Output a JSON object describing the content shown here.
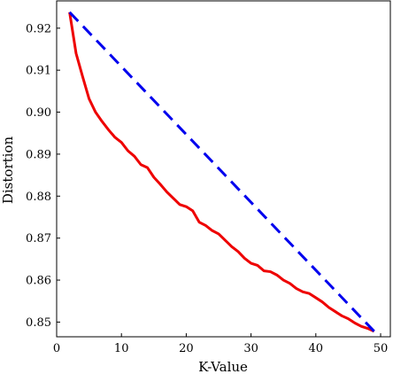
{
  "chart_data": {
    "type": "line",
    "xlabel": "K-Value",
    "ylabel": "Distortion",
    "xlim": [
      0,
      51.5
    ],
    "ylim": [
      0.8465,
      0.9265
    ],
    "xticks": [
      0,
      10,
      20,
      30,
      40,
      50
    ],
    "yticks": [
      0.85,
      0.86,
      0.87,
      0.88,
      0.89,
      0.9,
      0.91,
      0.92
    ],
    "xtick_labels": [
      "0",
      "10",
      "20",
      "30",
      "40",
      "50"
    ],
    "ytick_labels": [
      "0.85",
      "0.86",
      "0.87",
      "0.88",
      "0.89",
      "0.90",
      "0.91",
      "0.92"
    ],
    "grid": false,
    "series": [
      {
        "color": "#ee0000",
        "style": "solid",
        "x": [
          2,
          3,
          4,
          5,
          6,
          7,
          8,
          9,
          10,
          11,
          12,
          13,
          14,
          15,
          16,
          17,
          18,
          19,
          20,
          21,
          22,
          23,
          24,
          25,
          26,
          27,
          28,
          29,
          30,
          31,
          32,
          33,
          34,
          35,
          36,
          37,
          38,
          39,
          40,
          41,
          42,
          43,
          44,
          45,
          46,
          47,
          48,
          49
        ],
        "y": [
          0.9238,
          0.914,
          0.9085,
          0.9032,
          0.9,
          0.8978,
          0.8958,
          0.894,
          0.8928,
          0.8908,
          0.8895,
          0.8875,
          0.8868,
          0.8845,
          0.8828,
          0.881,
          0.8795,
          0.878,
          0.8775,
          0.8765,
          0.8738,
          0.873,
          0.8718,
          0.871,
          0.8695,
          0.868,
          0.8668,
          0.8652,
          0.864,
          0.8635,
          0.8622,
          0.862,
          0.8612,
          0.86,
          0.8592,
          0.858,
          0.8572,
          0.8568,
          0.8558,
          0.8548,
          0.8535,
          0.8525,
          0.8515,
          0.8508,
          0.8498,
          0.849,
          0.8485,
          0.8478
        ]
      },
      {
        "color": "#0000ee",
        "style": "dashed",
        "x": [
          2,
          49
        ],
        "y": [
          0.9238,
          0.8478
        ]
      }
    ]
  }
}
